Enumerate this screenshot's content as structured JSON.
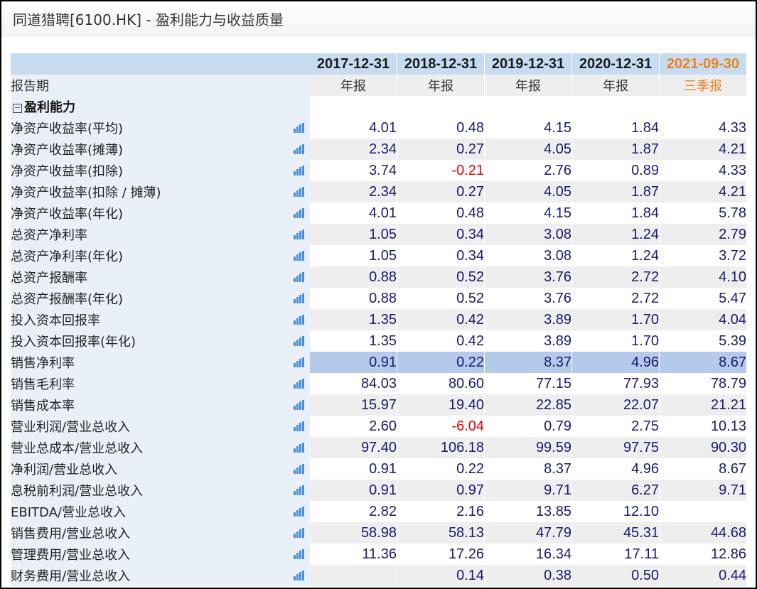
{
  "title": "同道猎聘[6100.HK] - 盈利能力与收益质量",
  "header": {
    "row_label": "报告期",
    "dates": [
      "2017-12-31",
      "2018-12-31",
      "2019-12-31",
      "2020-12-31",
      "2021-09-30"
    ],
    "report_types": [
      "年报",
      "年报",
      "年报",
      "年报",
      "三季报"
    ],
    "latest_color": "#e8831f"
  },
  "section": {
    "toggle_symbol": "−",
    "label": "盈利能力"
  },
  "rows": [
    {
      "label": "净资产收益率(平均)",
      "values": [
        "4.01",
        "0.48",
        "4.15",
        "1.84",
        "4.33"
      ]
    },
    {
      "label": "净资产收益率(摊薄)",
      "values": [
        "2.34",
        "0.27",
        "4.05",
        "1.87",
        "4.21"
      ]
    },
    {
      "label": "净资产收益率(扣除)",
      "values": [
        "3.74",
        "-0.21",
        "2.76",
        "0.89",
        "4.33"
      ]
    },
    {
      "label": "净资产收益率(扣除 / 摊薄)",
      "values": [
        "2.34",
        "0.27",
        "4.05",
        "1.87",
        "4.21"
      ]
    },
    {
      "label": "净资产收益率(年化)",
      "values": [
        "4.01",
        "0.48",
        "4.15",
        "1.84",
        "5.78"
      ]
    },
    {
      "label": "总资产净利率",
      "values": [
        "1.05",
        "0.34",
        "3.08",
        "1.24",
        "2.79"
      ]
    },
    {
      "label": "总资产净利率(年化)",
      "values": [
        "1.05",
        "0.34",
        "3.08",
        "1.24",
        "3.72"
      ]
    },
    {
      "label": "总资产报酬率",
      "values": [
        "0.88",
        "0.52",
        "3.76",
        "2.72",
        "4.10"
      ]
    },
    {
      "label": "总资产报酬率(年化)",
      "values": [
        "0.88",
        "0.52",
        "3.76",
        "2.72",
        "5.47"
      ]
    },
    {
      "label": "投入资本回报率",
      "values": [
        "1.35",
        "0.42",
        "3.89",
        "1.70",
        "4.04"
      ]
    },
    {
      "label": "投入资本回报率(年化)",
      "values": [
        "1.35",
        "0.42",
        "3.89",
        "1.70",
        "5.39"
      ]
    },
    {
      "label": "销售净利率",
      "values": [
        "0.91",
        "0.22",
        "8.37",
        "4.96",
        "8.67"
      ],
      "highlight": true
    },
    {
      "label": "销售毛利率",
      "values": [
        "84.03",
        "80.60",
        "77.15",
        "77.93",
        "78.79"
      ]
    },
    {
      "label": "销售成本率",
      "values": [
        "15.97",
        "19.40",
        "22.85",
        "22.07",
        "21.21"
      ]
    },
    {
      "label": "营业利润/营业总收入",
      "values": [
        "2.60",
        "-6.04",
        "0.79",
        "2.75",
        "10.13"
      ]
    },
    {
      "label": "营业总成本/营业总收入",
      "values": [
        "97.40",
        "106.18",
        "99.59",
        "97.75",
        "90.30"
      ]
    },
    {
      "label": "净利润/营业总收入",
      "values": [
        "0.91",
        "0.22",
        "8.37",
        "4.96",
        "8.67"
      ]
    },
    {
      "label": "息税前利润/营业总收入",
      "values": [
        "0.91",
        "0.97",
        "9.71",
        "6.27",
        "9.71"
      ]
    },
    {
      "label": "EBITDA/营业总收入",
      "values": [
        "2.82",
        "2.16",
        "13.85",
        "12.10",
        ""
      ]
    },
    {
      "label": "销售费用/营业总收入",
      "values": [
        "58.98",
        "58.13",
        "47.79",
        "45.31",
        "44.68"
      ]
    },
    {
      "label": "管理费用/营业总收入",
      "values": [
        "11.36",
        "17.26",
        "16.34",
        "17.11",
        "12.86"
      ]
    },
    {
      "label": "财务费用/营业总收入",
      "values": [
        "",
        "0.14",
        "0.38",
        "0.50",
        "0.44"
      ]
    }
  ],
  "icon": "bar-chart-icon",
  "icon_color": "#4a8fd6",
  "negative_color": "#e60000",
  "value_color": "#1a1a6e"
}
